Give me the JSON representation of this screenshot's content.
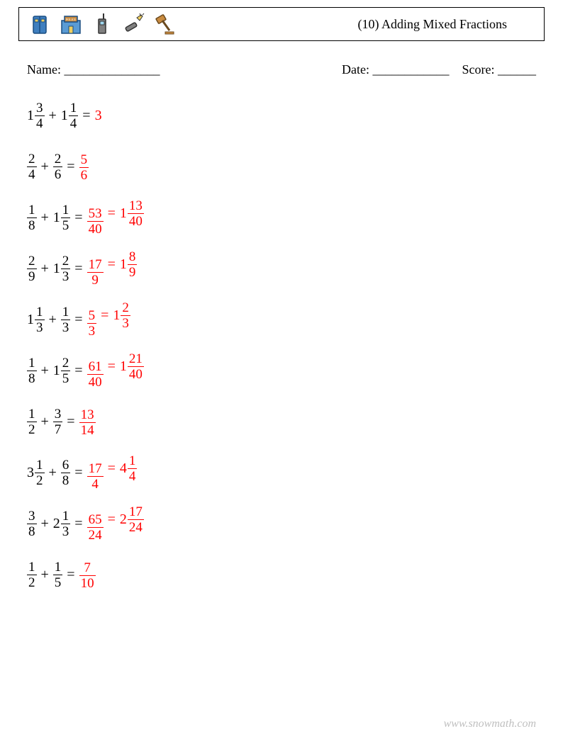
{
  "header": {
    "title": "(10) Adding Mixed Fractions",
    "icons": [
      "vest-icon",
      "police-station-icon",
      "radio-icon",
      "flashlight-icon",
      "gavel-icon"
    ]
  },
  "info": {
    "name_label": "Name: _______________",
    "date_label": "Date: ____________",
    "score_label": "Score: ______"
  },
  "problems": [
    {
      "a": {
        "whole": "1",
        "num": "3",
        "den": "4"
      },
      "b": {
        "whole": "1",
        "num": "1",
        "den": "4"
      },
      "ans1": {
        "whole": "3",
        "num": "",
        "den": ""
      },
      "has_ans2": false
    },
    {
      "a": {
        "whole": "",
        "num": "2",
        "den": "4"
      },
      "b": {
        "whole": "",
        "num": "2",
        "den": "6"
      },
      "ans1": {
        "whole": "",
        "num": "5",
        "den": "6"
      },
      "has_ans2": false
    },
    {
      "a": {
        "whole": "",
        "num": "1",
        "den": "8"
      },
      "b": {
        "whole": "1",
        "num": "1",
        "den": "5"
      },
      "ans1": {
        "whole": "",
        "num": "53",
        "den": "40"
      },
      "has_ans2": true,
      "ans2": {
        "whole": "1",
        "num": "13",
        "den": "40"
      }
    },
    {
      "a": {
        "whole": "",
        "num": "2",
        "den": "9"
      },
      "b": {
        "whole": "1",
        "num": "2",
        "den": "3"
      },
      "ans1": {
        "whole": "",
        "num": "17",
        "den": "9"
      },
      "has_ans2": true,
      "ans2": {
        "whole": "1",
        "num": "8",
        "den": "9"
      }
    },
    {
      "a": {
        "whole": "1",
        "num": "1",
        "den": "3"
      },
      "b": {
        "whole": "",
        "num": "1",
        "den": "3"
      },
      "ans1": {
        "whole": "",
        "num": "5",
        "den": "3"
      },
      "has_ans2": true,
      "ans2": {
        "whole": "1",
        "num": "2",
        "den": "3"
      }
    },
    {
      "a": {
        "whole": "",
        "num": "1",
        "den": "8"
      },
      "b": {
        "whole": "1",
        "num": "2",
        "den": "5"
      },
      "ans1": {
        "whole": "",
        "num": "61",
        "den": "40"
      },
      "has_ans2": true,
      "ans2": {
        "whole": "1",
        "num": "21",
        "den": "40"
      }
    },
    {
      "a": {
        "whole": "",
        "num": "1",
        "den": "2"
      },
      "b": {
        "whole": "",
        "num": "3",
        "den": "7"
      },
      "ans1": {
        "whole": "",
        "num": "13",
        "den": "14"
      },
      "has_ans2": false
    },
    {
      "a": {
        "whole": "3",
        "num": "1",
        "den": "2"
      },
      "b": {
        "whole": "",
        "num": "6",
        "den": "8"
      },
      "ans1": {
        "whole": "",
        "num": "17",
        "den": "4"
      },
      "has_ans2": true,
      "ans2": {
        "whole": "4",
        "num": "1",
        "den": "4"
      }
    },
    {
      "a": {
        "whole": "",
        "num": "3",
        "den": "8"
      },
      "b": {
        "whole": "2",
        "num": "1",
        "den": "3"
      },
      "ans1": {
        "whole": "",
        "num": "65",
        "den": "24"
      },
      "has_ans2": true,
      "ans2": {
        "whole": "2",
        "num": "17",
        "den": "24"
      }
    },
    {
      "a": {
        "whole": "",
        "num": "1",
        "den": "2"
      },
      "b": {
        "whole": "",
        "num": "1",
        "den": "5"
      },
      "ans1": {
        "whole": "",
        "num": "7",
        "den": "10"
      },
      "has_ans2": false
    }
  ],
  "footer": "www.snowmath.com",
  "colors": {
    "text": "#000000",
    "answer": "#ff0000",
    "footer": "#c0c0c0",
    "background": "#ffffff"
  }
}
